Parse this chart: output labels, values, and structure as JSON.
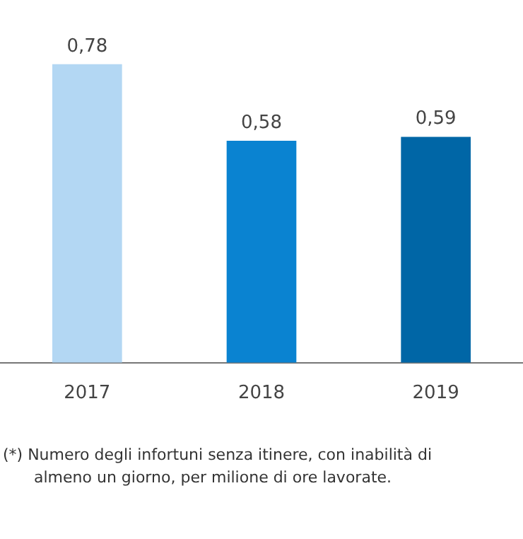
{
  "chart_data": {
    "type": "bar",
    "categories": [
      "2017",
      "2018",
      "2019"
    ],
    "values": [
      0.78,
      0.58,
      0.59
    ],
    "colors": [
      "#b3d7f3",
      "#0a83d1",
      "#0066a6"
    ],
    "value_labels": [
      "0,78",
      "0,58",
      "0,59"
    ],
    "grid": false,
    "legend": false,
    "tick_labels": "x",
    "annotations": [
      "(*)  Numero degli infortuni senza itinere, con inabilità di almeno un giorno, per milione di ore lavorate."
    ]
  }
}
